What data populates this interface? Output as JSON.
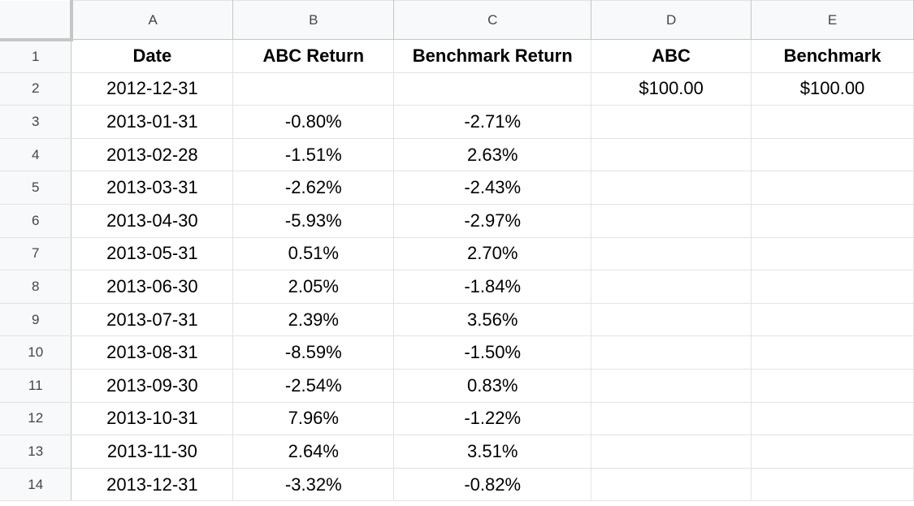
{
  "sheet": {
    "column_headers": [
      "A",
      "B",
      "C",
      "D",
      "E"
    ],
    "rows": [
      {
        "num": "1",
        "cells": [
          "Date",
          "ABC Return",
          "Benchmark Return",
          "ABC",
          "Benchmark"
        ]
      },
      {
        "num": "2",
        "cells": [
          "2012-12-31",
          "",
          "",
          "$100.00",
          "$100.00"
        ]
      },
      {
        "num": "3",
        "cells": [
          "2013-01-31",
          "-0.80%",
          "-2.71%",
          "",
          ""
        ]
      },
      {
        "num": "4",
        "cells": [
          "2013-02-28",
          "-1.51%",
          "2.63%",
          "",
          ""
        ]
      },
      {
        "num": "5",
        "cells": [
          "2013-03-31",
          "-2.62%",
          "-2.43%",
          "",
          ""
        ]
      },
      {
        "num": "6",
        "cells": [
          "2013-04-30",
          "-5.93%",
          "-2.97%",
          "",
          ""
        ]
      },
      {
        "num": "7",
        "cells": [
          "2013-05-31",
          "0.51%",
          "2.70%",
          "",
          ""
        ]
      },
      {
        "num": "8",
        "cells": [
          "2013-06-30",
          "2.05%",
          "-1.84%",
          "",
          ""
        ]
      },
      {
        "num": "9",
        "cells": [
          "2013-07-31",
          "2.39%",
          "3.56%",
          "",
          ""
        ]
      },
      {
        "num": "10",
        "cells": [
          "2013-08-31",
          "-8.59%",
          "-1.50%",
          "",
          ""
        ]
      },
      {
        "num": "11",
        "cells": [
          "2013-09-30",
          "-2.54%",
          "0.83%",
          "",
          ""
        ]
      },
      {
        "num": "12",
        "cells": [
          "2013-10-31",
          "7.96%",
          "-1.22%",
          "",
          ""
        ]
      },
      {
        "num": "13",
        "cells": [
          "2013-11-30",
          "2.64%",
          "3.51%",
          "",
          ""
        ]
      },
      {
        "num": "14",
        "cells": [
          "2013-12-31",
          "-3.32%",
          "-0.82%",
          "",
          ""
        ]
      }
    ]
  }
}
